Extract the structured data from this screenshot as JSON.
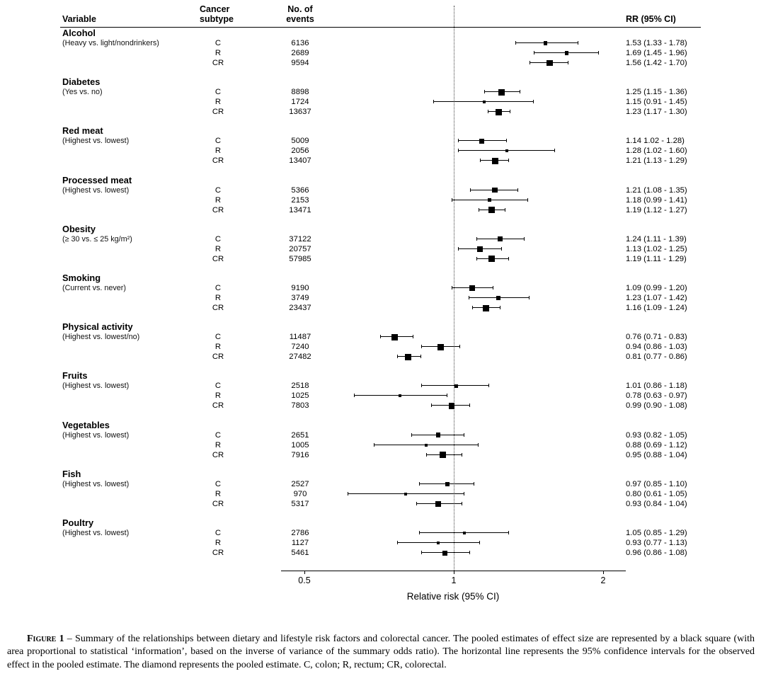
{
  "header": {
    "variable": "Variable",
    "cancer_subtype": [
      "Cancer",
      "subtype"
    ],
    "no_of_events": [
      "No. of",
      "events"
    ],
    "rr": "RR (95% CI)"
  },
  "axis": {
    "scale": "log",
    "tick_labels": [
      "0.5",
      "1",
      "2"
    ],
    "tick_values": [
      0.5,
      1,
      2
    ],
    "reference_value": 1,
    "label": "Relative risk (95% CI)"
  },
  "chart_data": {
    "type": "forest",
    "xscale": "log",
    "xlim": [
      0.45,
      2.3
    ],
    "xlabel": "Relative risk (95% CI)",
    "reference_line": 1,
    "marker_color": "#000000",
    "groups": [
      {
        "variable": "Alcohol",
        "comparison": "(Heavy vs. light/nondrinkers)",
        "rows": [
          {
            "subtype": "C",
            "events": 6136,
            "rr": 1.53,
            "lo": 1.33,
            "hi": 1.78,
            "rr_text": "1.53 (1.33 - 1.78)"
          },
          {
            "subtype": "R",
            "events": 2689,
            "rr": 1.69,
            "lo": 1.45,
            "hi": 1.96,
            "rr_text": "1.69 (1.45 - 1.96)"
          },
          {
            "subtype": "CR",
            "events": 9594,
            "rr": 1.56,
            "lo": 1.42,
            "hi": 1.7,
            "rr_text": "1.56 (1.42 - 1.70)"
          }
        ]
      },
      {
        "variable": "Diabetes",
        "comparison": "(Yes vs. no)",
        "rows": [
          {
            "subtype": "C",
            "events": 8898,
            "rr": 1.25,
            "lo": 1.15,
            "hi": 1.36,
            "rr_text": "1.25 (1.15 - 1.36)"
          },
          {
            "subtype": "R",
            "events": 1724,
            "rr": 1.15,
            "lo": 0.91,
            "hi": 1.45,
            "rr_text": "1.15 (0.91 - 1.45)"
          },
          {
            "subtype": "CR",
            "events": 13637,
            "rr": 1.23,
            "lo": 1.17,
            "hi": 1.3,
            "rr_text": "1.23 (1.17 - 1.30)"
          }
        ]
      },
      {
        "variable": "Red meat",
        "comparison": "(Highest vs. lowest)",
        "rows": [
          {
            "subtype": "C",
            "events": 5009,
            "rr": 1.14,
            "lo": 1.02,
            "hi": 1.28,
            "rr_text": "1.14 1.02 - 1.28)"
          },
          {
            "subtype": "R",
            "events": 2056,
            "rr": 1.28,
            "lo": 1.02,
            "hi": 1.6,
            "rr_text": "1.28 (1.02 - 1.60)"
          },
          {
            "subtype": "CR",
            "events": 13407,
            "rr": 1.21,
            "lo": 1.13,
            "hi": 1.29,
            "rr_text": "1.21 (1.13 - 1.29)"
          }
        ]
      },
      {
        "variable": "Processed meat",
        "comparison": "(Highest vs. lowest)",
        "rows": [
          {
            "subtype": "C",
            "events": 5366,
            "rr": 1.21,
            "lo": 1.08,
            "hi": 1.35,
            "rr_text": "1.21 (1.08 - 1.35)"
          },
          {
            "subtype": "R",
            "events": 2153,
            "rr": 1.18,
            "lo": 0.99,
            "hi": 1.41,
            "rr_text": "1.18 (0.99 - 1.41)"
          },
          {
            "subtype": "CR",
            "events": 13471,
            "rr": 1.19,
            "lo": 1.12,
            "hi": 1.27,
            "rr_text": "1.19 (1.12 - 1.27)"
          }
        ]
      },
      {
        "variable": "Obesity",
        "comparison": "(≥ 30 vs. ≤ 25 kg/m²)",
        "rows": [
          {
            "subtype": "C",
            "events": 37122,
            "rr": 1.24,
            "lo": 1.11,
            "hi": 1.39,
            "rr_text": "1.24 (1.11 - 1.39)"
          },
          {
            "subtype": "R",
            "events": 20757,
            "rr": 1.13,
            "lo": 1.02,
            "hi": 1.25,
            "rr_text": "1.13 (1.02 - 1.25)"
          },
          {
            "subtype": "CR",
            "events": 57985,
            "rr": 1.19,
            "lo": 1.11,
            "hi": 1.29,
            "rr_text": "1.19 (1.11 - 1.29)"
          }
        ]
      },
      {
        "variable": "Smoking",
        "comparison": "(Current vs. never)",
        "rows": [
          {
            "subtype": "C",
            "events": 9190,
            "rr": 1.09,
            "lo": 0.99,
            "hi": 1.2,
            "rr_text": "1.09 (0.99 - 1.20)"
          },
          {
            "subtype": "R",
            "events": 3749,
            "rr": 1.23,
            "lo": 1.07,
            "hi": 1.42,
            "rr_text": "1.23 (1.07 - 1.42)"
          },
          {
            "subtype": "CR",
            "events": 23437,
            "rr": 1.16,
            "lo": 1.09,
            "hi": 1.24,
            "rr_text": "1.16 (1.09 - 1.24)"
          }
        ]
      },
      {
        "variable": "Physical activity",
        "comparison": "(Highest vs. lowest/no)",
        "rows": [
          {
            "subtype": "C",
            "events": 11487,
            "rr": 0.76,
            "lo": 0.71,
            "hi": 0.83,
            "rr_text": "0.76 (0.71 - 0.83)"
          },
          {
            "subtype": "R",
            "events": 7240,
            "rr": 0.94,
            "lo": 0.86,
            "hi": 1.03,
            "rr_text": "0.94 (0.86 - 1.03)"
          },
          {
            "subtype": "CR",
            "events": 27482,
            "rr": 0.81,
            "lo": 0.77,
            "hi": 0.86,
            "rr_text": "0.81 (0.77 - 0.86)"
          }
        ]
      },
      {
        "variable": "Fruits",
        "comparison": "(Highest vs. lowest)",
        "rows": [
          {
            "subtype": "C",
            "events": 2518,
            "rr": 1.01,
            "lo": 0.86,
            "hi": 1.18,
            "rr_text": "1.01 (0.86 - 1.18)"
          },
          {
            "subtype": "R",
            "events": 1025,
            "rr": 0.78,
            "lo": 0.63,
            "hi": 0.97,
            "rr_text": "0.78 (0.63 - 0.97)"
          },
          {
            "subtype": "CR",
            "events": 7803,
            "rr": 0.99,
            "lo": 0.9,
            "hi": 1.08,
            "rr_text": "0.99 (0.90 - 1.08)"
          }
        ]
      },
      {
        "variable": "Vegetables",
        "comparison": "(Highest vs. lowest)",
        "rows": [
          {
            "subtype": "C",
            "events": 2651,
            "rr": 0.93,
            "lo": 0.82,
            "hi": 1.05,
            "rr_text": "0.93 (0.82 - 1.05)"
          },
          {
            "subtype": "R",
            "events": 1005,
            "rr": 0.88,
            "lo": 0.69,
            "hi": 1.12,
            "rr_text": "0.88 (0.69 - 1.12)"
          },
          {
            "subtype": "CR",
            "events": 7916,
            "rr": 0.95,
            "lo": 0.88,
            "hi": 1.04,
            "rr_text": "0.95 (0.88 - 1.04)"
          }
        ]
      },
      {
        "variable": "Fish",
        "comparison": "(Highest vs. lowest)",
        "rows": [
          {
            "subtype": "C",
            "events": 2527,
            "rr": 0.97,
            "lo": 0.85,
            "hi": 1.1,
            "rr_text": "0.97 (0.85 - 1.10)"
          },
          {
            "subtype": "R",
            "events": 970,
            "rr": 0.8,
            "lo": 0.61,
            "hi": 1.05,
            "rr_text": "0.80 (0.61 - 1.05)"
          },
          {
            "subtype": "CR",
            "events": 5317,
            "rr": 0.93,
            "lo": 0.84,
            "hi": 1.04,
            "rr_text": "0.93 (0.84 - 1.04)"
          }
        ]
      },
      {
        "variable": "Poultry",
        "comparison": "(Highest vs. lowest)",
        "rows": [
          {
            "subtype": "C",
            "events": 2786,
            "rr": 1.05,
            "lo": 0.85,
            "hi": 1.29,
            "rr_text": "1.05 (0.85 - 1.29)"
          },
          {
            "subtype": "R",
            "events": 1127,
            "rr": 0.93,
            "lo": 0.77,
            "hi": 1.13,
            "rr_text": "0.93 (0.77 - 1.13)"
          },
          {
            "subtype": "CR",
            "events": 5461,
            "rr": 0.96,
            "lo": 0.86,
            "hi": 1.08,
            "rr_text": "0.96 (0.86 - 1.08)"
          }
        ]
      }
    ]
  },
  "caption": {
    "label": "Figure 1",
    "text": " – Summary of the relationships between dietary and lifestyle risk factors and colorectal cancer. The pooled estimates of effect size are represented by a black square (with area proportional to statistical ‘information’, based on the inverse of variance of the summary odds ratio). The horizontal line represents the 95% confidence intervals for the observed effect in the pooled estimate. The diamond represents the pooled estimate. C, colon; R, rectum; CR, colorectal."
  }
}
